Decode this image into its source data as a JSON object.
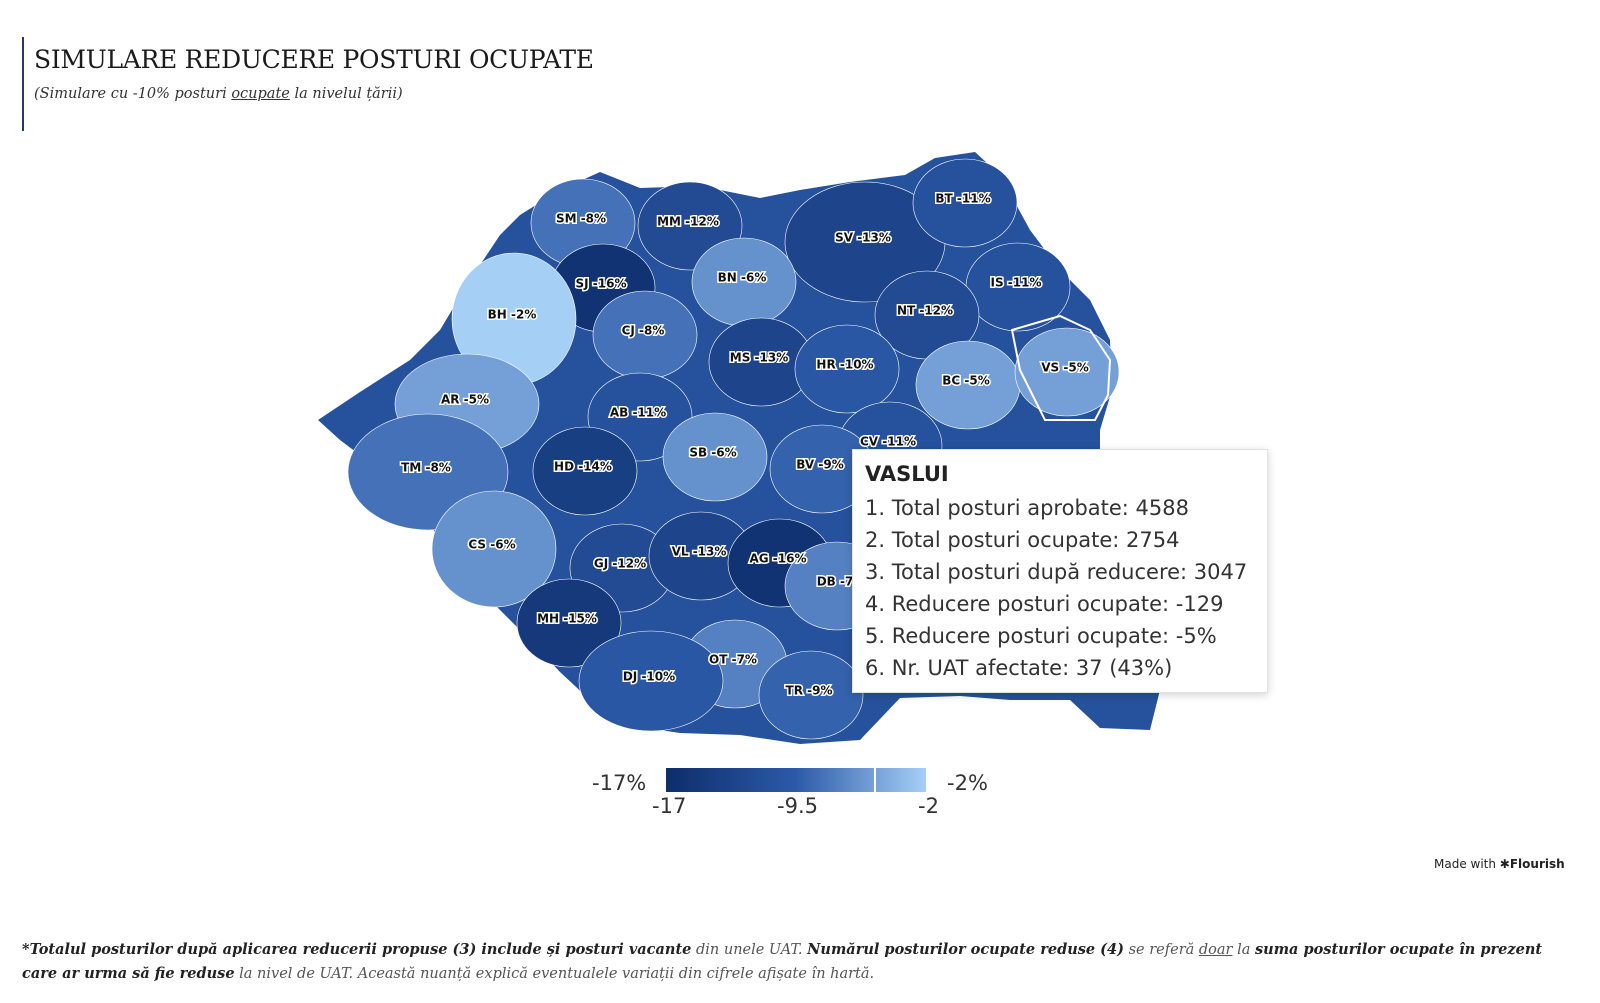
{
  "title": "SIMULARE REDUCERE POSTURI OCUPATE",
  "subtitle": {
    "part1": "(Simulare cu -10% posturi ",
    "underlined": "ocupate",
    "part2": " la nivelul țării)"
  },
  "map": {
    "country": "Romania",
    "colors": {
      "min": "#0d2d6b",
      "mid": "#2c5aa8",
      "max": "#a6cff6"
    },
    "counties": [
      {
        "code": "SM",
        "label": "SM -8%",
        "value": -8
      },
      {
        "code": "MM",
        "label": "MM -12%",
        "value": -12
      },
      {
        "code": "SV",
        "label": "SV -13%",
        "value": -13
      },
      {
        "code": "BT",
        "label": "BT -11%",
        "value": -11
      },
      {
        "code": "SJ",
        "label": "SJ -16%",
        "value": -16
      },
      {
        "code": "BN",
        "label": "BN -6%",
        "value": -6
      },
      {
        "code": "IS",
        "label": "IS -11%",
        "value": -11
      },
      {
        "code": "BH",
        "label": "BH -2%",
        "value": -2
      },
      {
        "code": "CJ",
        "label": "CJ -8%",
        "value": -8
      },
      {
        "code": "NT",
        "label": "NT -12%",
        "value": -12
      },
      {
        "code": "MS",
        "label": "MS -13%",
        "value": -13
      },
      {
        "code": "HR",
        "label": "HR -10%",
        "value": -10
      },
      {
        "code": "BC",
        "label": "BC -5%",
        "value": -5
      },
      {
        "code": "VS",
        "label": "VS -5%",
        "value": -5
      },
      {
        "code": "AR",
        "label": "AR -5%",
        "value": -5
      },
      {
        "code": "AB",
        "label": "AB -11%",
        "value": -11
      },
      {
        "code": "CV",
        "label": "CV -11%",
        "value": -11
      },
      {
        "code": "SB",
        "label": "SB -6%",
        "value": -6
      },
      {
        "code": "TM",
        "label": "TM -8%",
        "value": -8
      },
      {
        "code": "HD",
        "label": "HD -14%",
        "value": -14
      },
      {
        "code": "BV",
        "label": "BV -9%",
        "value": -9
      },
      {
        "code": "CS",
        "label": "CS -6%",
        "value": -6
      },
      {
        "code": "GJ",
        "label": "GJ -12%",
        "value": -12
      },
      {
        "code": "VL",
        "label": "VL -13%",
        "value": -13
      },
      {
        "code": "AG",
        "label": "AG -16%",
        "value": -16
      },
      {
        "code": "DB",
        "label": "DB -7",
        "value": -7
      },
      {
        "code": "MH",
        "label": "MH -15%",
        "value": -15
      },
      {
        "code": "OT",
        "label": "OT -7%",
        "value": -7
      },
      {
        "code": "DJ",
        "label": "DJ -10%",
        "value": -10
      },
      {
        "code": "TR",
        "label": "TR -9%",
        "value": -9
      }
    ]
  },
  "tooltip": {
    "title": "VASLUI",
    "lines": [
      "1. Total posturi aprobate: 4588",
      "2. Total posturi ocupate: 2754",
      "3. Total posturi după reducere: 3047",
      "4. Reducere posturi ocupate: -129",
      "5. Reducere posturi ocupate: -5%",
      "6. Nr. UAT afectate: 37 (43%)"
    ]
  },
  "legend": {
    "min_label": "-17%",
    "max_label": "-2%",
    "ticks": [
      "-17",
      "-9.5",
      "-2"
    ],
    "marker_value": -5
  },
  "credit": {
    "prefix": "Made with ",
    "brand": "✱Flourish"
  },
  "footnote": {
    "s1": "*Totalul posturilor după aplicarea reducerii propuse (3) include și posturi vacante",
    "s2": " din unele UAT. ",
    "s3": "Numărul posturilor ocupate reduse (4)",
    "s4": " se referă ",
    "s5": "doar",
    "s6": " la ",
    "s7": "suma posturilor ocupate în prezent care ar urma să fie reduse",
    "s8": " la nivel de UAT. Această nuanță explică eventualele variații din cifrele afișate în hartă."
  }
}
